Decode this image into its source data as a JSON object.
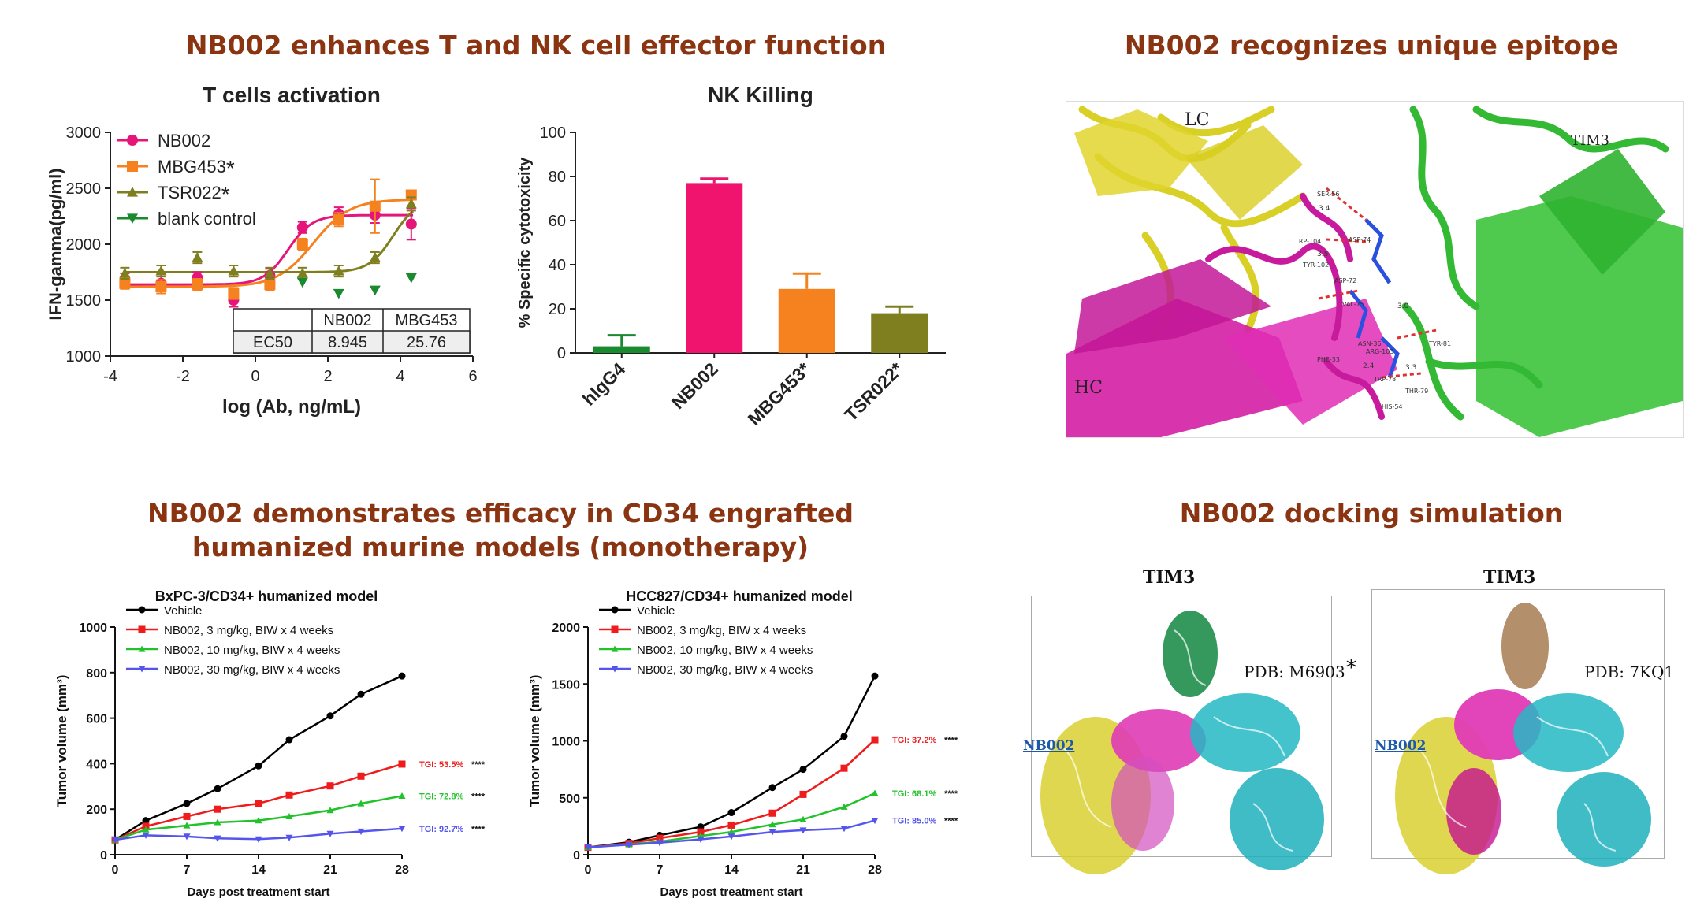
{
  "titles": {
    "top_left": "NB002 enhances T and NK cell effector function",
    "top_right": "NB002 recognizes unique epitope",
    "bottom_left_1": "NB002 demonstrates efficacy in CD34 engrafted",
    "bottom_left_2": "humanized murine models (monotherapy)",
    "bottom_right": "NB002 docking simulation"
  },
  "colors": {
    "title": "#8a3412",
    "nb002_pink": "#e6157a",
    "mbg453_orange": "#f5821f",
    "tsr022_olive": "#7f7f1f",
    "blank_green": "#1a8a2e",
    "vehicle": "#000000",
    "dose3": "#ee1c1c",
    "dose10": "#22c22a",
    "dose30": "#5555ee"
  },
  "structure_epitope": {
    "labels": {
      "lc": "LC",
      "hc": "HC",
      "tim3": "TIM3"
    },
    "residues": [
      "SER-56",
      "TRP-104",
      "ASP-74",
      "TYR-102",
      "ASP-72",
      "VAL-75",
      "ASN-36",
      "ARG-103",
      "PHE-33",
      "TRP-78",
      "THR-79",
      "HIS-54",
      "TYR-81"
    ],
    "distances": [
      "3.4",
      "3.5",
      "3.0",
      "2.4",
      "3.3"
    ]
  },
  "docking": {
    "left": {
      "title": "TIM3",
      "pdb": "PDB: M6903",
      "star": "*",
      "ab": "NB002"
    },
    "right": {
      "title": "TIM3",
      "pdb": "PDB: 7KQ1",
      "ab": "NB002"
    }
  },
  "chart_data": [
    {
      "type": "scatter",
      "title": "T cells activation",
      "xlabel": "log (Ab, ng/mL)",
      "ylabel": "IFN-gamma(pg/ml)",
      "xlim": [
        -4,
        6
      ],
      "ylim": [
        1000,
        3000
      ],
      "xticks": [
        "-4",
        "-2",
        "0",
        "2",
        "4",
        "6"
      ],
      "yticks": [
        "1000",
        "1500",
        "2000",
        "2500",
        "3000"
      ],
      "legend": "top-left",
      "series": [
        {
          "name": "NB002",
          "marker": "circle",
          "color": "#e6157a",
          "x": [
            -3.6,
            -2.6,
            -1.6,
            -0.6,
            0.4,
            1.3,
            2.3,
            3.3,
            4.3
          ],
          "y": [
            1680,
            1650,
            1700,
            1500,
            1720,
            2150,
            2270,
            2260,
            2180
          ],
          "err": [
            60,
            90,
            50,
            60,
            60,
            50,
            60,
            70,
            140
          ]
        },
        {
          "name": "MBG453",
          "star": "*",
          "marker": "square",
          "color": "#f5821f",
          "x": [
            -3.6,
            -2.6,
            -1.6,
            -0.6,
            0.4,
            1.3,
            2.3,
            3.3,
            4.3
          ],
          "y": [
            1650,
            1620,
            1640,
            1560,
            1640,
            2000,
            2220,
            2340,
            2440
          ],
          "err": [
            50,
            60,
            50,
            50,
            50,
            50,
            60,
            240,
            40
          ]
        },
        {
          "name": "TSR022",
          "star": "*",
          "marker": "triangle",
          "color": "#7f7f1f",
          "x": [
            -3.6,
            -2.6,
            -1.6,
            -0.6,
            0.4,
            1.3,
            2.3,
            3.3,
            4.3
          ],
          "y": [
            1740,
            1760,
            1880,
            1760,
            1740,
            1740,
            1760,
            1880,
            2360
          ],
          "err": [
            50,
            50,
            50,
            50,
            50,
            50,
            50,
            50,
            60
          ]
        },
        {
          "name": "blank control",
          "marker": "triangle-down",
          "color": "#1a8a2e",
          "x": [
            1.3,
            2.3,
            3.3,
            4.3
          ],
          "y": [
            1660,
            1560,
            1590,
            1700
          ]
        }
      ],
      "ec50_table": {
        "headers": [
          "",
          "NB002",
          "MBG453"
        ],
        "rows": [
          [
            "EC50",
            "8.945",
            "25.76"
          ]
        ]
      }
    },
    {
      "type": "bar",
      "title": "NK Killing",
      "ylabel": "% Specific cytotoxicity",
      "ylim": [
        0,
        100
      ],
      "yticks": [
        "0",
        "20",
        "40",
        "60",
        "80",
        "100"
      ],
      "categories": [
        "hIgG4",
        "NB002",
        "MBG453*",
        "TSR022*"
      ],
      "values": [
        3,
        77,
        29,
        18
      ],
      "errors": [
        5,
        2,
        7,
        3
      ],
      "colors": [
        "#1a8a2e",
        "#f0146f",
        "#f5821f",
        "#7f7f1f"
      ]
    },
    {
      "type": "line",
      "title": "BxPC-3/CD34+ humanized model",
      "xlabel": "Days post treatment start",
      "ylabel": "Tumor volume (mm³)",
      "xlim": [
        0,
        28
      ],
      "ylim": [
        0,
        1000
      ],
      "xticks": [
        "0",
        "7",
        "14",
        "21",
        "28"
      ],
      "yticks": [
        "0",
        "200",
        "400",
        "600",
        "800",
        "1000"
      ],
      "legend": "top-left",
      "x": [
        0,
        3,
        7,
        10,
        14,
        17,
        21,
        24,
        28
      ],
      "series": [
        {
          "name": "Vehicle",
          "color": "#000000",
          "values": [
            65,
            150,
            225,
            290,
            390,
            505,
            610,
            705,
            785
          ]
        },
        {
          "name": "NB002, 3 mg/kg, BIW x 4 weeks",
          "color": "#ee1c1c",
          "values": [
            65,
            125,
            168,
            200,
            225,
            262,
            302,
            345,
            398
          ]
        },
        {
          "name": "NB002, 10 mg/kg, BIW x 4 weeks",
          "color": "#22c22a",
          "values": [
            65,
            110,
            128,
            142,
            150,
            168,
            195,
            225,
            258
          ]
        },
        {
          "name": "NB002, 30 mg/kg, BIW x 4 weeks",
          "color": "#5555ee",
          "values": [
            65,
            85,
            80,
            72,
            68,
            75,
            92,
            102,
            115
          ]
        }
      ],
      "annotations": [
        {
          "text": "TGI: 53.5%",
          "stars": "****",
          "color": "#ee1c1c"
        },
        {
          "text": "TGI: 72.8%",
          "stars": "****",
          "color": "#22c22a"
        },
        {
          "text": "TGI: 92.7%",
          "stars": "****",
          "color": "#5555ee"
        }
      ]
    },
    {
      "type": "line",
      "title": "HCC827/CD34+ humanized model",
      "xlabel": "Days post treatment start",
      "ylabel": "Tumor volume (mm³)",
      "xlim": [
        0,
        28
      ],
      "ylim": [
        0,
        2000
      ],
      "xticks": [
        "0",
        "7",
        "14",
        "21",
        "28"
      ],
      "yticks": [
        "0",
        "500",
        "1000",
        "1500",
        "2000"
      ],
      "legend": "top-left",
      "x": [
        0,
        4,
        7,
        11,
        14,
        18,
        21,
        25,
        28
      ],
      "series": [
        {
          "name": "Vehicle",
          "color": "#000000",
          "values": [
            65,
            110,
            170,
            245,
            370,
            590,
            750,
            1040,
            1570
          ]
        },
        {
          "name": "NB002, 3 mg/kg, BIW x 4 weeks",
          "color": "#ee1c1c",
          "values": [
            65,
            100,
            145,
            200,
            260,
            365,
            530,
            760,
            1010
          ]
        },
        {
          "name": "NB002, 10 mg/kg, BIW x 4 weeks",
          "color": "#22c22a",
          "values": [
            65,
            90,
            115,
            165,
            200,
            265,
            310,
            420,
            540
          ]
        },
        {
          "name": "NB002, 30 mg/kg, BIW x 4 weeks",
          "color": "#5555ee",
          "values": [
            65,
            88,
            105,
            135,
            160,
            200,
            215,
            230,
            300
          ]
        }
      ],
      "annotations": [
        {
          "text": "TGI: 37.2%",
          "stars": "****",
          "color": "#ee1c1c"
        },
        {
          "text": "TGI: 68.1%",
          "stars": "****",
          "color": "#22c22a"
        },
        {
          "text": "TGI: 85.0%",
          "stars": "****",
          "color": "#5555ee"
        }
      ]
    }
  ]
}
